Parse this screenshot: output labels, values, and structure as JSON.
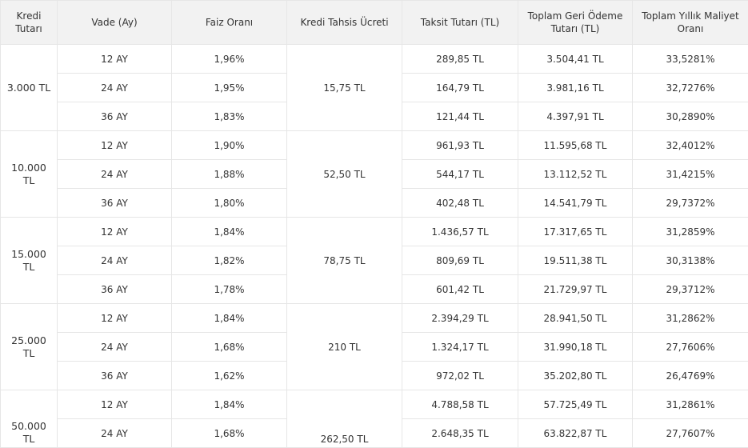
{
  "headers": [
    "Kredi Tutarı",
    "Vade (Ay)",
    "Faiz Oranı",
    "Kredi Tahsis Ücreti",
    "Taksit Tutarı (TL)",
    "Toplam Geri Ödeme Tutarı (TL)",
    "Toplam Yıllık Maliyet Oranı"
  ],
  "groups": [
    {
      "amount": "3.000 TL",
      "fee": "15,75 TL",
      "rows": [
        {
          "term": "12 AY",
          "rate": "1,96%",
          "installment": "289,85 TL",
          "total": "3.504,41 TL",
          "annual": "33,5281%"
        },
        {
          "term": "24 AY",
          "rate": "1,95%",
          "installment": "164,79 TL",
          "total": "3.981,16 TL",
          "annual": "32,7276%"
        },
        {
          "term": "36 AY",
          "rate": "1,83%",
          "installment": "121,44 TL",
          "total": "4.397,91 TL",
          "annual": "30,2890%"
        }
      ]
    },
    {
      "amount": "10.000 TL",
      "fee": "52,50 TL",
      "rows": [
        {
          "term": "12 AY",
          "rate": "1,90%",
          "installment": "961,93 TL",
          "total": "11.595,68 TL",
          "annual": "32,4012%"
        },
        {
          "term": "24 AY",
          "rate": "1,88%",
          "installment": "544,17 TL",
          "total": "13.112,52 TL",
          "annual": "31,4215%"
        },
        {
          "term": "36 AY",
          "rate": "1,80%",
          "installment": "402,48 TL",
          "total": "14.541,79 TL",
          "annual": "29,7372%"
        }
      ]
    },
    {
      "amount": "15.000 TL",
      "fee": "78,75 TL",
      "rows": [
        {
          "term": "12 AY",
          "rate": "1,84%",
          "installment": "1.436,57 TL",
          "total": "17.317,65 TL",
          "annual": "31,2859%"
        },
        {
          "term": "24 AY",
          "rate": "1,82%",
          "installment": "809,69 TL",
          "total": "19.511,38 TL",
          "annual": "30,3138%"
        },
        {
          "term": "36 AY",
          "rate": "1,78%",
          "installment": "601,42 TL",
          "total": "21.729,97 TL",
          "annual": "29,3712%"
        }
      ]
    },
    {
      "amount": "25.000 TL",
      "fee": "210 TL",
      "rows": [
        {
          "term": "12 AY",
          "rate": "1,84%",
          "installment": "2.394,29 TL",
          "total": "28.941,50 TL",
          "annual": "31,2862%"
        },
        {
          "term": "24 AY",
          "rate": "1,68%",
          "installment": "1.324,17 TL",
          "total": "31.990,18 TL",
          "annual": "27,7606%"
        },
        {
          "term": "36 AY",
          "rate": "1,62%",
          "installment": "972,02 TL",
          "total": "35.202,80 TL",
          "annual": "26,4769%"
        }
      ]
    },
    {
      "amount": "50.000 TL",
      "fee": "262,50 TL",
      "rows": [
        {
          "term": "12 AY",
          "rate": "1,84%",
          "installment": "4.788,58 TL",
          "total": "57.725,49 TL",
          "annual": "31,2861%"
        },
        {
          "term": "24 AY",
          "rate": "1,68%",
          "installment": "2.648,35 TL",
          "total": "63.822,87 TL",
          "annual": "27,7607%"
        }
      ]
    }
  ]
}
